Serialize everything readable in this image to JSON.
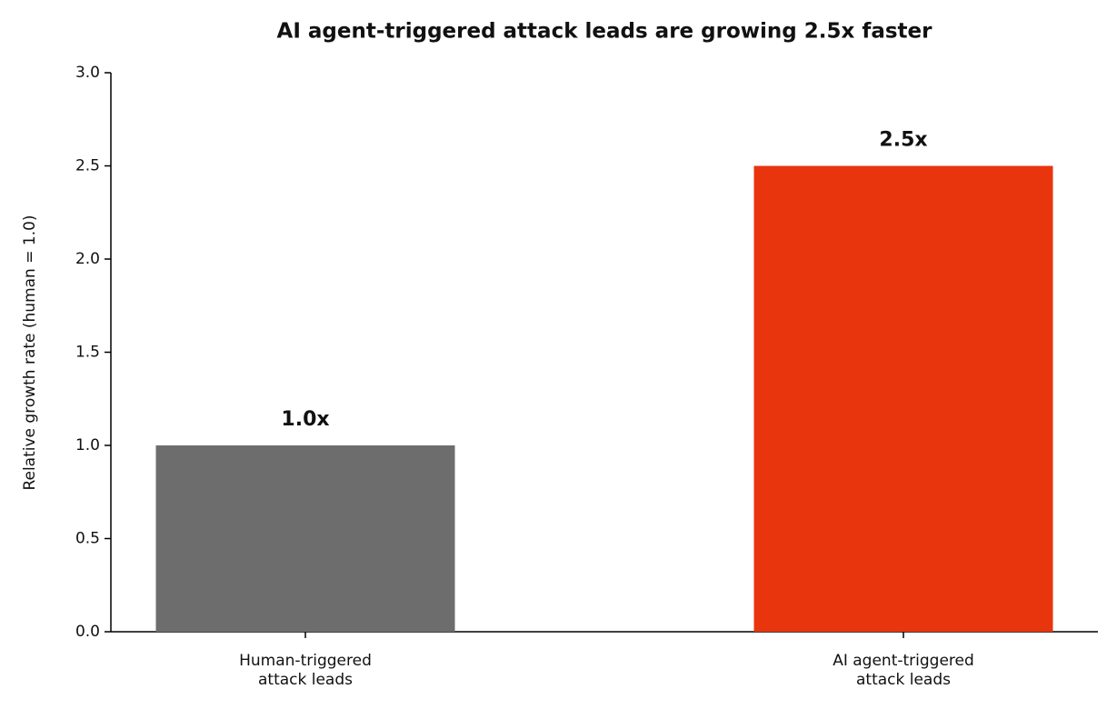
{
  "chart_data": {
    "type": "bar",
    "title": "AI agent-triggered attack leads are growing 2.5x faster",
    "y_label": "Relative growth rate (human = 1.0)",
    "categories": [
      "Human-triggered\nattack leads",
      "AI agent-triggered\nattack leads"
    ],
    "values": [
      1.0,
      2.5
    ],
    "value_labels": [
      "1.0x",
      "2.5x"
    ],
    "colors": [
      "#6d6d6d",
      "#e8350d"
    ],
    "ylim": [
      0,
      3
    ],
    "yticks": [
      {
        "value": 0,
        "label": "0.0"
      },
      0.5,
      {
        "value": 1,
        "label": "1.0"
      },
      1.5,
      {
        "value": 2,
        "label": "2.0"
      },
      2.5,
      {
        "value": 3,
        "label": "3.0"
      }
    ]
  }
}
